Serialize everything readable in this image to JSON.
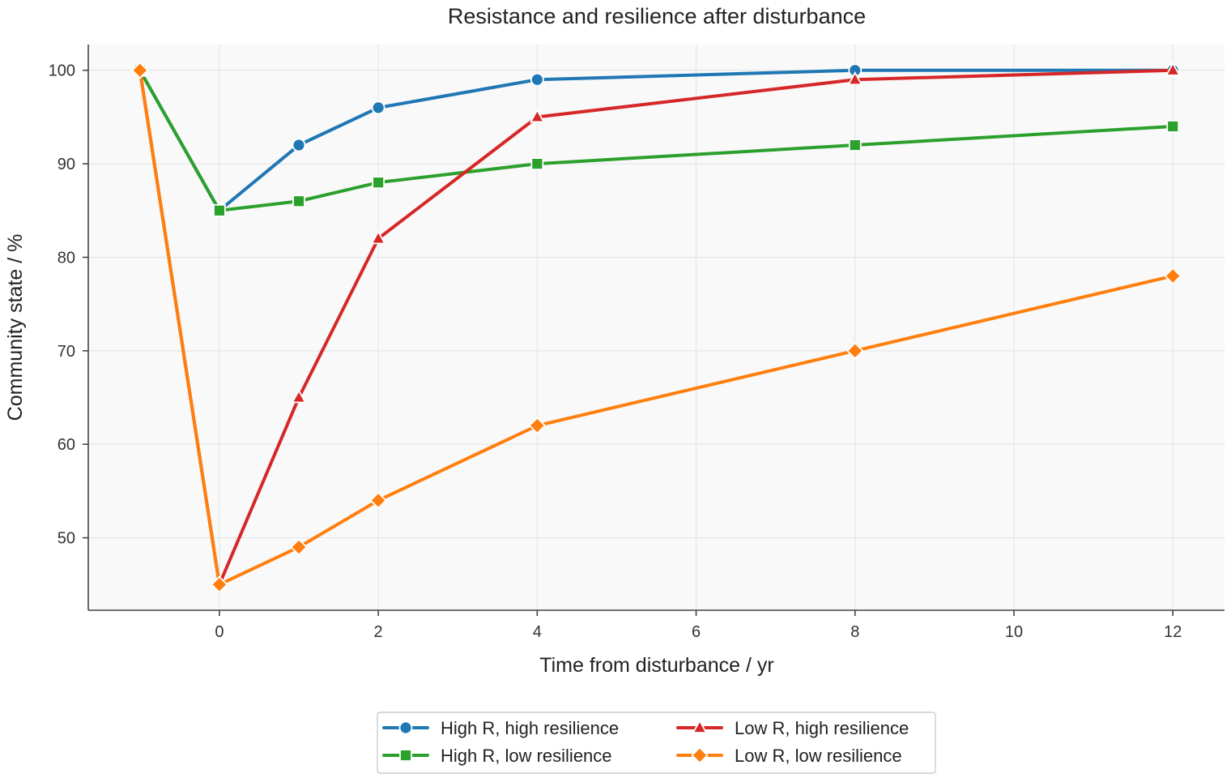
{
  "chart_data": {
    "type": "line",
    "title": "Resistance and resilience after disturbance",
    "xlabel": "Time from disturbance / yr",
    "ylabel": "Community state / %",
    "xlim": [
      -1.65,
      12.65
    ],
    "ylim": [
      42.25,
      102.75
    ],
    "xticks": [
      0,
      2,
      4,
      6,
      8,
      10,
      12
    ],
    "yticks": [
      50,
      60,
      70,
      80,
      90,
      100
    ],
    "grid": true,
    "legend_position": "bottom-center",
    "x": [
      -1,
      0,
      1,
      2,
      4,
      8,
      12
    ],
    "series": [
      {
        "name": "High R, high resilience",
        "color": "#1f77b4",
        "marker": "circle",
        "values": [
          100,
          85,
          92,
          96,
          99,
          100,
          100
        ]
      },
      {
        "name": "High R, low resilience",
        "color": "#2ca02c",
        "marker": "square",
        "values": [
          100,
          85,
          86,
          88,
          90,
          92,
          94
        ]
      },
      {
        "name": "Low R, high resilience",
        "color": "#d62728",
        "marker": "triangle",
        "values": [
          100,
          45,
          65,
          82,
          95,
          99,
          100
        ]
      },
      {
        "name": "Low R, low resilience",
        "color": "#ff7f0e",
        "marker": "diamond",
        "values": [
          100,
          45,
          49,
          54,
          62,
          70,
          78
        ]
      }
    ]
  }
}
